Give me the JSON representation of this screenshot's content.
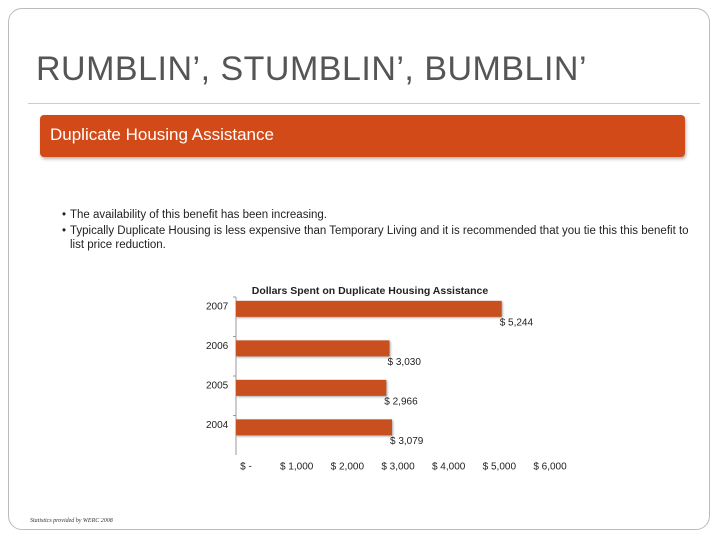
{
  "title": "RUMBLIN’, STUMBLIN’, BUMBLIN’",
  "banner": "Duplicate Housing Assistance",
  "bullets": [
    "The availability of this benefit has been increasing.",
    "Typically Duplicate Housing is less expensive than Temporary Living and it is recommended that you tie this  this benefit to list price reduction."
  ],
  "footnote": "Statistics provided by WERC 2008",
  "chart_data": {
    "type": "hbar",
    "title": "Dollars Spent on Duplicate Housing Assistance",
    "categories": [
      "2007",
      "2006",
      "2005",
      "2004"
    ],
    "values": [
      5244,
      3030,
      2966,
      3079
    ],
    "value_labels": [
      "$ 5,244",
      "$ 3,030",
      "$ 2,966",
      "$ 3,079"
    ],
    "color": "#c8501e",
    "xlim": [
      0,
      6000
    ],
    "xticks": [
      {
        "value": 0,
        "label": "$ -"
      },
      {
        "value": 1000,
        "label": "$ 1,000"
      },
      {
        "value": 2000,
        "label": "$ 2,000"
      },
      {
        "value": 3000,
        "label": "$ 3,000"
      },
      {
        "value": 4000,
        "label": "$ 4,000"
      },
      {
        "value": 5000,
        "label": "$ 5,000"
      },
      {
        "value": 6000,
        "label": "$ 6,000"
      }
    ]
  }
}
